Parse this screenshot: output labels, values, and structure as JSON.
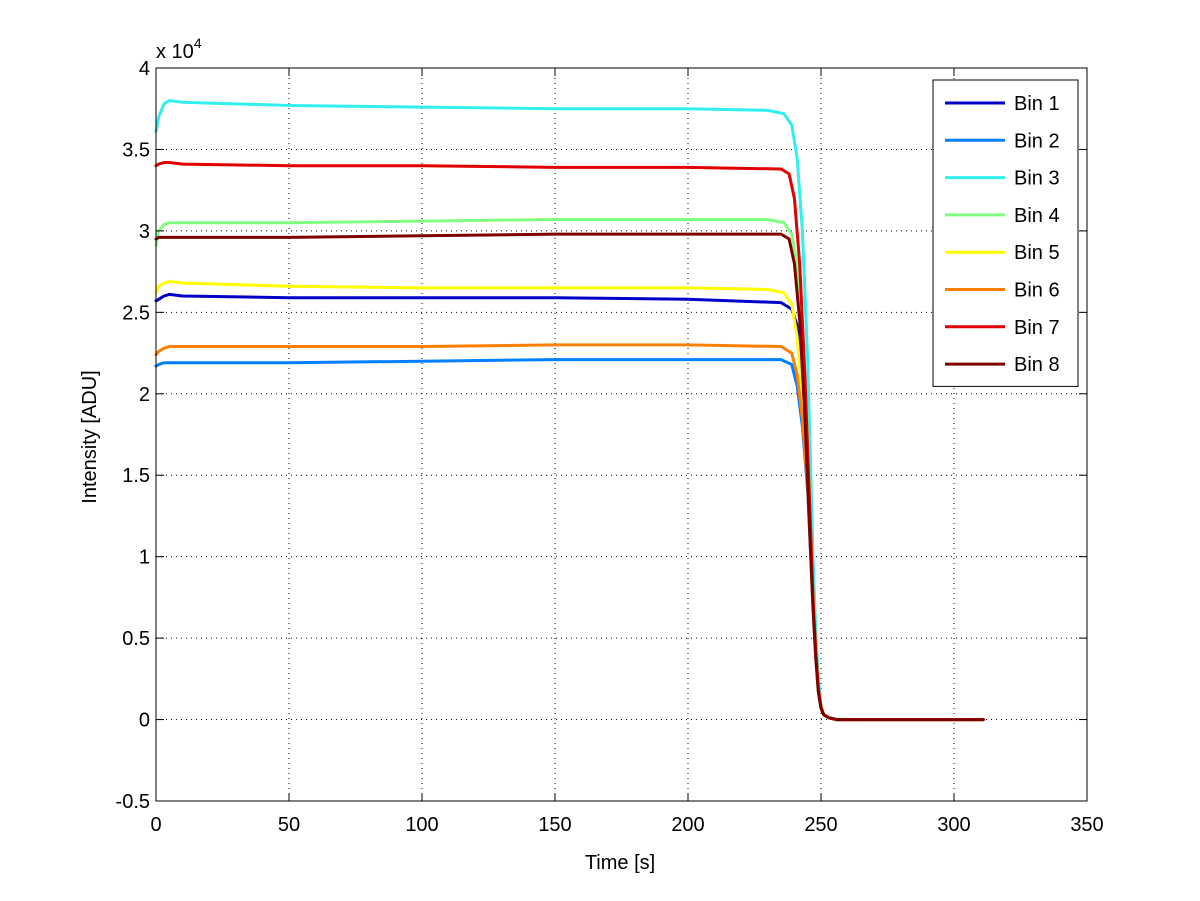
{
  "chart_data": {
    "type": "line",
    "xlabel": "Time [s]",
    "ylabel": "Intensity [ADU]",
    "y_multiplier_label": "x 10",
    "y_multiplier_exponent": "4",
    "xlim": [
      0,
      350
    ],
    "ylim": [
      -0.5,
      4
    ],
    "xticks": [
      0,
      50,
      100,
      150,
      200,
      250,
      300,
      350
    ],
    "xtick_labels": [
      "0",
      "50",
      "100",
      "150",
      "200",
      "250",
      "300",
      "350"
    ],
    "yticks": [
      -0.5,
      0,
      0.5,
      1,
      1.5,
      2,
      2.5,
      3,
      3.5,
      4
    ],
    "ytick_labels": [
      "-0.5",
      "0",
      "0.5",
      "1",
      "1.5",
      "2",
      "2.5",
      "3",
      "3.5",
      "4"
    ],
    "grid": true,
    "legend_position": "top-right",
    "series": [
      {
        "name": "Bin 1",
        "color": "#0000c8",
        "x": [
          0,
          1,
          3,
          5,
          10,
          50,
          100,
          150,
          200,
          235,
          239,
          241,
          243,
          245,
          246,
          247,
          248,
          249,
          250,
          251,
          253,
          256,
          260,
          311
        ],
        "y": [
          2.57,
          2.58,
          2.6,
          2.61,
          2.6,
          2.59,
          2.59,
          2.59,
          2.58,
          2.56,
          2.52,
          2.42,
          2.1,
          1.55,
          1.15,
          0.75,
          0.42,
          0.2,
          0.08,
          0.03,
          0.01,
          0.0,
          0.0,
          0.0
        ]
      },
      {
        "name": "Bin 2",
        "color": "#0080ff",
        "x": [
          0,
          1,
          3,
          5,
          10,
          50,
          100,
          150,
          200,
          235,
          239,
          241,
          243,
          245,
          246,
          247,
          248,
          249,
          250,
          251,
          253,
          256,
          260,
          311
        ],
        "y": [
          2.17,
          2.18,
          2.19,
          2.19,
          2.19,
          2.19,
          2.2,
          2.21,
          2.21,
          2.21,
          2.18,
          2.05,
          1.8,
          1.4,
          1.05,
          0.7,
          0.4,
          0.18,
          0.07,
          0.03,
          0.01,
          0.0,
          0.0,
          0.0
        ]
      },
      {
        "name": "Bin 3",
        "color": "#33eeee",
        "x": [
          0,
          1,
          3,
          5,
          10,
          50,
          100,
          150,
          200,
          230,
          236,
          239,
          241,
          243,
          245,
          246,
          247,
          248,
          249,
          250,
          251,
          253,
          256,
          260,
          311
        ],
        "y": [
          3.61,
          3.7,
          3.78,
          3.8,
          3.79,
          3.77,
          3.76,
          3.75,
          3.75,
          3.74,
          3.72,
          3.65,
          3.45,
          3.0,
          2.2,
          1.6,
          1.0,
          0.55,
          0.25,
          0.09,
          0.03,
          0.01,
          0.0,
          0.0,
          0.0
        ]
      },
      {
        "name": "Bin 4",
        "color": "#80ff80",
        "x": [
          0,
          1,
          3,
          5,
          10,
          50,
          100,
          150,
          200,
          230,
          236,
          239,
          241,
          243,
          245,
          246,
          247,
          248,
          249,
          250,
          251,
          253,
          256,
          260,
          311
        ],
        "y": [
          2.91,
          3.0,
          3.04,
          3.05,
          3.05,
          3.05,
          3.06,
          3.07,
          3.07,
          3.07,
          3.05,
          2.98,
          2.8,
          2.4,
          1.75,
          1.25,
          0.8,
          0.45,
          0.2,
          0.08,
          0.03,
          0.01,
          0.0,
          0.0,
          0.0
        ]
      },
      {
        "name": "Bin 5",
        "color": "#ffff00",
        "x": [
          0,
          1,
          3,
          5,
          10,
          50,
          100,
          150,
          200,
          230,
          236,
          239,
          241,
          243,
          245,
          246,
          247,
          248,
          249,
          250,
          251,
          253,
          256,
          260,
          311
        ],
        "y": [
          2.62,
          2.66,
          2.68,
          2.69,
          2.68,
          2.66,
          2.65,
          2.65,
          2.65,
          2.64,
          2.62,
          2.55,
          2.35,
          2.0,
          1.5,
          1.1,
          0.7,
          0.4,
          0.18,
          0.07,
          0.03,
          0.01,
          0.0,
          0.0,
          0.0
        ]
      },
      {
        "name": "Bin 6",
        "color": "#ff8000",
        "x": [
          0,
          1,
          3,
          5,
          10,
          50,
          100,
          150,
          200,
          235,
          239,
          241,
          243,
          245,
          246,
          247,
          248,
          249,
          250,
          251,
          253,
          256,
          260,
          311
        ],
        "y": [
          2.24,
          2.26,
          2.28,
          2.29,
          2.29,
          2.29,
          2.29,
          2.3,
          2.3,
          2.29,
          2.25,
          2.12,
          1.85,
          1.42,
          1.07,
          0.72,
          0.42,
          0.19,
          0.08,
          0.03,
          0.01,
          0.0,
          0.0,
          0.0
        ]
      },
      {
        "name": "Bin 7",
        "color": "#e00000",
        "x": [
          0,
          1,
          3,
          5,
          10,
          50,
          100,
          150,
          200,
          235,
          238,
          240,
          242,
          244,
          245,
          246,
          247,
          248,
          249,
          250,
          251,
          253,
          256,
          260,
          311
        ],
        "y": [
          3.4,
          3.41,
          3.42,
          3.42,
          3.41,
          3.4,
          3.4,
          3.39,
          3.39,
          3.38,
          3.35,
          3.2,
          2.8,
          2.1,
          1.65,
          1.2,
          0.75,
          0.42,
          0.19,
          0.07,
          0.03,
          0.01,
          0.0,
          0.0,
          0.0
        ]
      },
      {
        "name": "Bin 8",
        "color": "#800000",
        "x": [
          0,
          1,
          3,
          5,
          10,
          50,
          100,
          150,
          200,
          235,
          238,
          240,
          242,
          244,
          245,
          246,
          247,
          248,
          249,
          250,
          251,
          253,
          256,
          260,
          311
        ],
        "y": [
          2.95,
          2.96,
          2.96,
          2.96,
          2.96,
          2.96,
          2.97,
          2.98,
          2.98,
          2.98,
          2.95,
          2.8,
          2.45,
          1.85,
          1.45,
          1.05,
          0.68,
          0.38,
          0.17,
          0.07,
          0.03,
          0.01,
          0.0,
          0.0,
          0.0
        ]
      }
    ]
  }
}
